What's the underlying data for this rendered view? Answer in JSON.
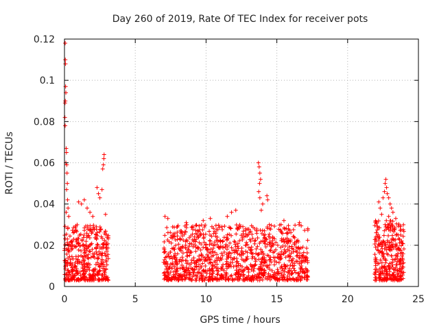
{
  "chart_data": {
    "type": "scatter",
    "title": "Day 260 of 2019, Rate Of TEC Index for receiver pots",
    "xlabel": "GPS time / hours",
    "ylabel": "ROTI / TECUs",
    "xlim": [
      0,
      25
    ],
    "ylim": [
      0,
      0.12
    ],
    "xticks": [
      0,
      5,
      10,
      15,
      20,
      25
    ],
    "yticks": [
      0,
      0.02,
      0.04,
      0.06,
      0.08,
      0.1,
      0.12
    ],
    "xtick_labels": [
      "0",
      "5",
      "10",
      "15",
      "20",
      "25"
    ],
    "ytick_labels": [
      "0",
      "0.02",
      "0.04",
      "0.06",
      "0.08",
      "0.1",
      "0.12"
    ],
    "grid": true,
    "marker": "+",
    "color": "#ff0000",
    "series": [
      {
        "name": "ROTI",
        "clusters": [
          {
            "t_start": 0.0,
            "t_end": 3.1,
            "y_min": 0.003,
            "y_max": 0.03,
            "points": 420
          },
          {
            "t_start": 7.0,
            "t_end": 17.2,
            "y_min": 0.003,
            "y_max": 0.03,
            "points": 1100
          },
          {
            "t_start": 21.9,
            "t_end": 24.0,
            "y_min": 0.003,
            "y_max": 0.032,
            "points": 330
          }
        ],
        "outliers": [
          {
            "x": 0.05,
            "y": 0.118
          },
          {
            "x": 0.06,
            "y": 0.11
          },
          {
            "x": 0.07,
            "y": 0.108
          },
          {
            "x": 0.08,
            "y": 0.097
          },
          {
            "x": 0.1,
            "y": 0.094
          },
          {
            "x": 0.06,
            "y": 0.09
          },
          {
            "x": 0.04,
            "y": 0.089
          },
          {
            "x": 0.03,
            "y": 0.082
          },
          {
            "x": 0.05,
            "y": 0.078
          },
          {
            "x": 0.12,
            "y": 0.067
          },
          {
            "x": 0.14,
            "y": 0.065
          },
          {
            "x": 0.1,
            "y": 0.06
          },
          {
            "x": 0.16,
            "y": 0.059
          },
          {
            "x": 0.18,
            "y": 0.055
          },
          {
            "x": 0.2,
            "y": 0.05
          },
          {
            "x": 0.15,
            "y": 0.047
          },
          {
            "x": 0.22,
            "y": 0.042
          },
          {
            "x": 0.25,
            "y": 0.038
          },
          {
            "x": 0.12,
            "y": 0.036
          },
          {
            "x": 0.3,
            "y": 0.034
          },
          {
            "x": 1.0,
            "y": 0.041
          },
          {
            "x": 1.2,
            "y": 0.04
          },
          {
            "x": 1.4,
            "y": 0.042
          },
          {
            "x": 1.6,
            "y": 0.038
          },
          {
            "x": 1.8,
            "y": 0.036
          },
          {
            "x": 2.0,
            "y": 0.034
          },
          {
            "x": 2.3,
            "y": 0.048
          },
          {
            "x": 2.4,
            "y": 0.045
          },
          {
            "x": 2.5,
            "y": 0.043
          },
          {
            "x": 2.65,
            "y": 0.047
          },
          {
            "x": 2.7,
            "y": 0.057
          },
          {
            "x": 2.75,
            "y": 0.059
          },
          {
            "x": 2.78,
            "y": 0.062
          },
          {
            "x": 2.8,
            "y": 0.064
          },
          {
            "x": 2.9,
            "y": 0.035
          },
          {
            "x": 7.1,
            "y": 0.034
          },
          {
            "x": 7.3,
            "y": 0.033
          },
          {
            "x": 8.6,
            "y": 0.031
          },
          {
            "x": 9.8,
            "y": 0.032
          },
          {
            "x": 10.3,
            "y": 0.033
          },
          {
            "x": 11.5,
            "y": 0.034
          },
          {
            "x": 11.8,
            "y": 0.036
          },
          {
            "x": 12.1,
            "y": 0.037
          },
          {
            "x": 12.6,
            "y": 0.029
          },
          {
            "x": 12.8,
            "y": 0.028
          },
          {
            "x": 13.7,
            "y": 0.06
          },
          {
            "x": 13.75,
            "y": 0.058
          },
          {
            "x": 13.8,
            "y": 0.055
          },
          {
            "x": 13.85,
            "y": 0.052
          },
          {
            "x": 13.78,
            "y": 0.05
          },
          {
            "x": 13.72,
            "y": 0.046
          },
          {
            "x": 13.8,
            "y": 0.043
          },
          {
            "x": 14.3,
            "y": 0.044
          },
          {
            "x": 14.35,
            "y": 0.042
          },
          {
            "x": 14.0,
            "y": 0.04
          },
          {
            "x": 13.9,
            "y": 0.037
          },
          {
            "x": 15.3,
            "y": 0.03
          },
          {
            "x": 15.5,
            "y": 0.032
          },
          {
            "x": 16.6,
            "y": 0.031
          },
          {
            "x": 22.2,
            "y": 0.041
          },
          {
            "x": 22.3,
            "y": 0.038
          },
          {
            "x": 22.5,
            "y": 0.043
          },
          {
            "x": 22.6,
            "y": 0.046
          },
          {
            "x": 22.65,
            "y": 0.05
          },
          {
            "x": 22.7,
            "y": 0.052
          },
          {
            "x": 22.75,
            "y": 0.048
          },
          {
            "x": 22.8,
            "y": 0.045
          },
          {
            "x": 22.9,
            "y": 0.043
          },
          {
            "x": 23.0,
            "y": 0.04
          },
          {
            "x": 23.1,
            "y": 0.038
          },
          {
            "x": 23.2,
            "y": 0.036
          },
          {
            "x": 22.9,
            "y": 0.034
          },
          {
            "x": 23.4,
            "y": 0.033
          },
          {
            "x": 22.4,
            "y": 0.035
          }
        ]
      }
    ]
  }
}
